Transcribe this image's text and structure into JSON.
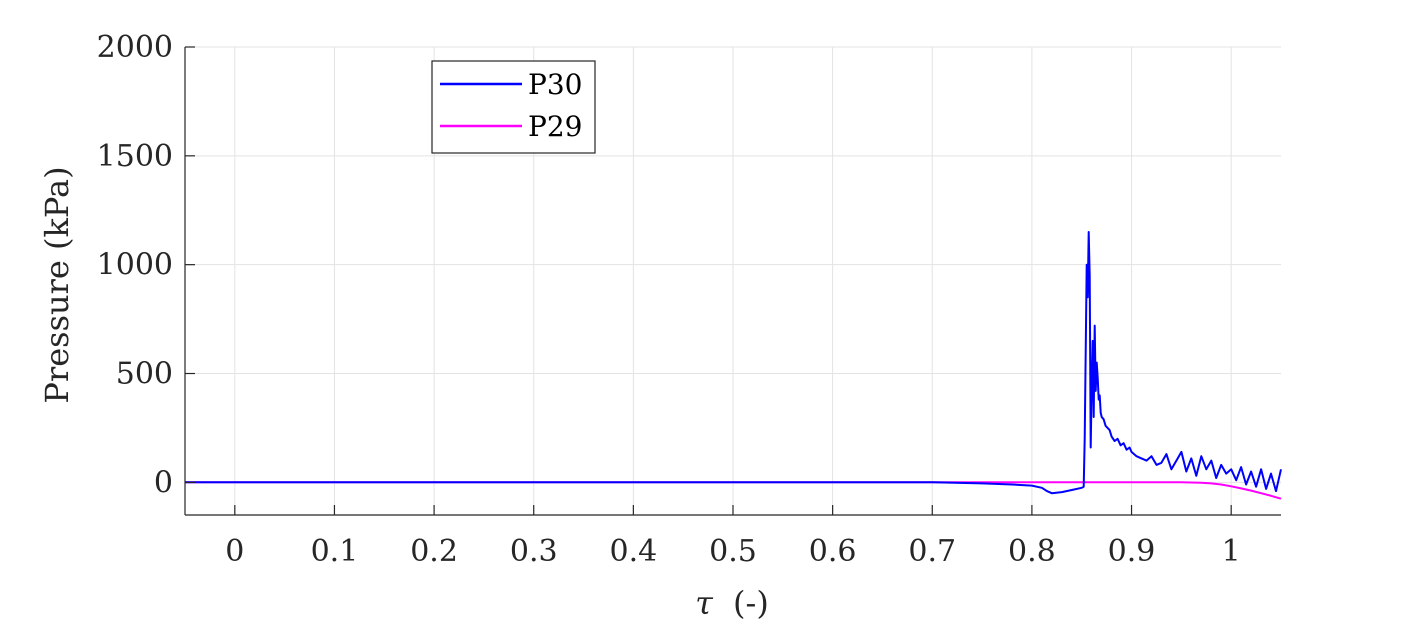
{
  "chart_data": {
    "type": "line",
    "title": "",
    "xlabel_symbol": "τ",
    "xlabel_unit": "(-)",
    "ylabel": "Pressure (kPa)",
    "xlim": [
      -0.05,
      1.05
    ],
    "ylim": [
      -150,
      2000
    ],
    "xticks": [
      0,
      0.1,
      0.2,
      0.3,
      0.4,
      0.5,
      0.6,
      0.7,
      0.8,
      0.9,
      1
    ],
    "xtick_labels": [
      "0",
      "0.1",
      "0.2",
      "0.3",
      "0.4",
      "0.5",
      "0.6",
      "0.7",
      "0.8",
      "0.9",
      "1"
    ],
    "yticks": [
      0,
      500,
      1000,
      1500,
      2000
    ],
    "ytick_labels": [
      "0",
      "500",
      "1000",
      "1500",
      "2000"
    ],
    "grid": true,
    "legend_position": "top-left",
    "series": [
      {
        "name": "P30",
        "color": "#0000ff",
        "x": [
          -0.05,
          0.0,
          0.1,
          0.2,
          0.3,
          0.4,
          0.5,
          0.6,
          0.7,
          0.75,
          0.78,
          0.8,
          0.81,
          0.815,
          0.82,
          0.83,
          0.84,
          0.85,
          0.852,
          0.853,
          0.854,
          0.855,
          0.856,
          0.857,
          0.858,
          0.859,
          0.86,
          0.861,
          0.862,
          0.863,
          0.864,
          0.865,
          0.866,
          0.867,
          0.868,
          0.869,
          0.87,
          0.872,
          0.874,
          0.876,
          0.878,
          0.88,
          0.883,
          0.886,
          0.889,
          0.892,
          0.895,
          0.898,
          0.9,
          0.905,
          0.91,
          0.915,
          0.92,
          0.925,
          0.93,
          0.935,
          0.94,
          0.945,
          0.95,
          0.955,
          0.96,
          0.965,
          0.97,
          0.975,
          0.98,
          0.985,
          0.99,
          0.995,
          1.0,
          1.005,
          1.01,
          1.015,
          1.02,
          1.025,
          1.03,
          1.035,
          1.04,
          1.045,
          1.05
        ],
        "y": [
          0,
          0,
          0,
          0,
          0,
          0,
          0,
          0,
          0,
          -5,
          -10,
          -15,
          -25,
          -40,
          -50,
          -45,
          -35,
          -25,
          -20,
          200,
          600,
          1000,
          850,
          1150,
          950,
          160,
          450,
          650,
          300,
          720,
          420,
          550,
          480,
          380,
          400,
          320,
          300,
          290,
          260,
          250,
          240,
          210,
          190,
          200,
          170,
          180,
          150,
          160,
          140,
          120,
          110,
          100,
          120,
          80,
          90,
          130,
          60,
          100,
          140,
          50,
          110,
          30,
          120,
          60,
          100,
          20,
          80,
          40,
          60,
          10,
          70,
          -10,
          50,
          -20,
          60,
          -30,
          40,
          -40,
          60
        ]
      },
      {
        "name": "P29",
        "color": "#ff00ff",
        "x": [
          -0.05,
          0.0,
          0.1,
          0.2,
          0.3,
          0.4,
          0.5,
          0.6,
          0.7,
          0.8,
          0.85,
          0.9,
          0.95,
          0.97,
          0.98,
          0.99,
          1.0,
          1.01,
          1.02,
          1.03,
          1.04,
          1.05
        ],
        "y": [
          0,
          0,
          0,
          0,
          0,
          0,
          0,
          0,
          0,
          0,
          0,
          0,
          0,
          -2,
          -5,
          -10,
          -18,
          -28,
          -38,
          -50,
          -62,
          -75
        ]
      }
    ]
  }
}
